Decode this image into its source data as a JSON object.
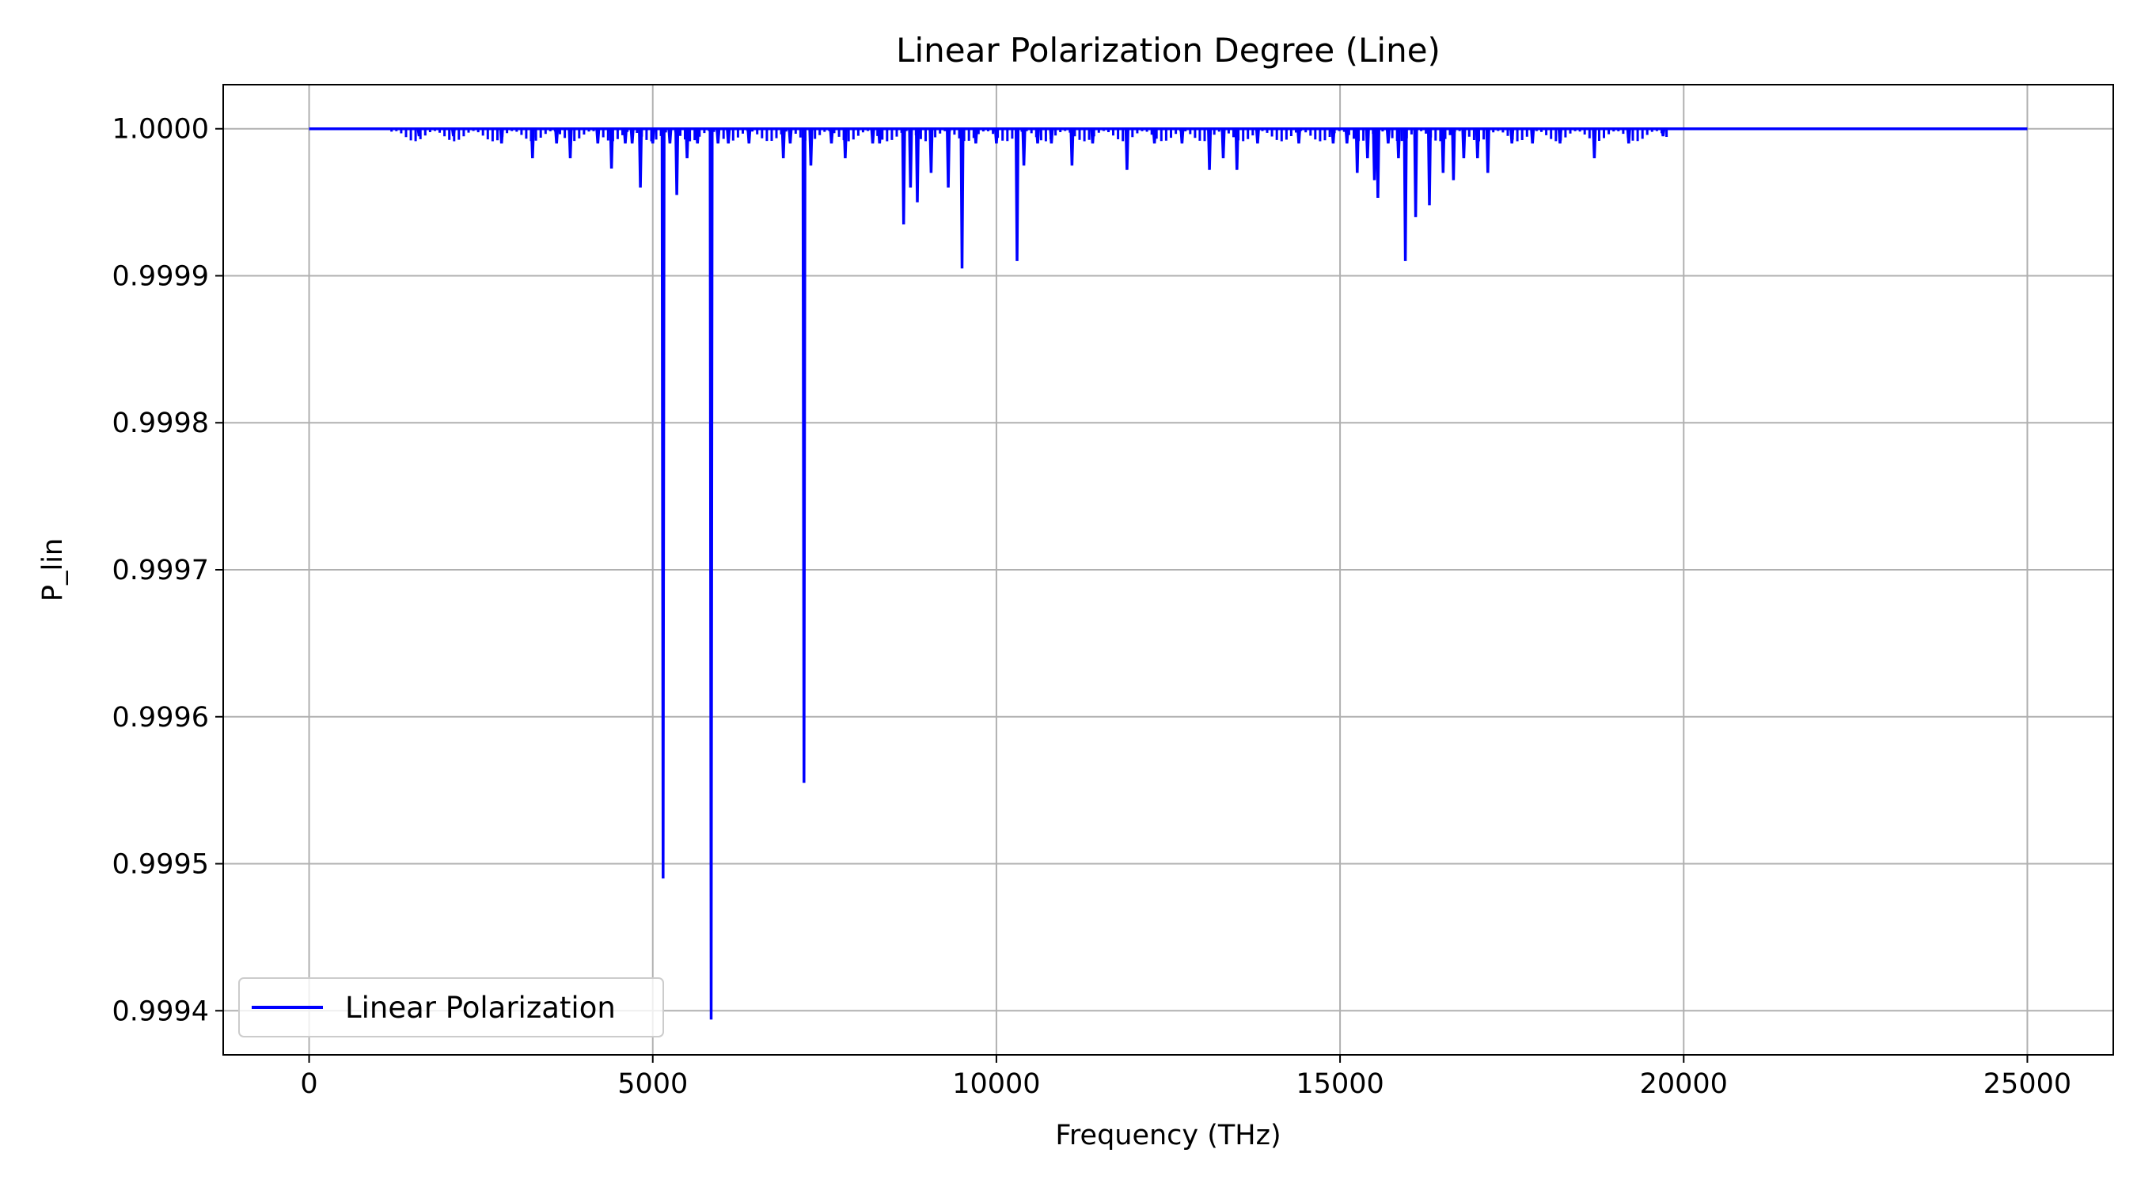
{
  "chart_data": {
    "type": "line",
    "title": "Linear Polarization Degree (Line)",
    "xlabel": "Frequency (THz)",
    "ylabel": "P_lin",
    "xlim": [
      -1250,
      26250
    ],
    "ylim": [
      0.99937,
      1.00003
    ],
    "xticks": [
      0,
      5000,
      10000,
      15000,
      20000,
      25000
    ],
    "xtick_labels": [
      "0",
      "5000",
      "10000",
      "15000",
      "20000",
      "25000"
    ],
    "yticks": [
      0.9994,
      0.9995,
      0.9996,
      0.9997,
      0.9998,
      0.9999,
      1.0
    ],
    "ytick_labels": [
      "0.9994",
      "0.9995",
      "0.9996",
      "0.9997",
      "0.9998",
      "0.9999",
      "1.0000"
    ],
    "grid": true,
    "legend_position": "lower-left",
    "colors": {
      "line": "#0000ff",
      "grid": "#b0b0b0",
      "axes": "#000000"
    },
    "baseline": 1.0,
    "x_range": [
      0,
      25000
    ],
    "series": [
      {
        "name": "Linear Polarization",
        "dips": [
          [
            1600,
            0.999995
          ],
          [
            2100,
            0.999995
          ],
          [
            2800,
            0.99999
          ],
          [
            3250,
            0.99998
          ],
          [
            3600,
            0.99999
          ],
          [
            3800,
            0.99998
          ],
          [
            4200,
            0.99999
          ],
          [
            4400,
            0.999973
          ],
          [
            4600,
            0.99999
          ],
          [
            4700,
            0.99999
          ],
          [
            4820,
            0.99996
          ],
          [
            5000,
            0.99999
          ],
          [
            5150,
            0.99949
          ],
          [
            5250,
            0.99999
          ],
          [
            5350,
            0.999955
          ],
          [
            5500,
            0.99998
          ],
          [
            5650,
            0.99999
          ],
          [
            5850,
            0.999394
          ],
          [
            5950,
            0.99999
          ],
          [
            6100,
            0.99999
          ],
          [
            6400,
            0.99999
          ],
          [
            6900,
            0.99998
          ],
          [
            7000,
            0.99999
          ],
          [
            7200,
            0.999555
          ],
          [
            7300,
            0.999975
          ],
          [
            7600,
            0.99999
          ],
          [
            7800,
            0.99998
          ],
          [
            8200,
            0.99999
          ],
          [
            8300,
            0.99999
          ],
          [
            8650,
            0.999935
          ],
          [
            8750,
            0.99996
          ],
          [
            8850,
            0.99995
          ],
          [
            9050,
            0.99997
          ],
          [
            9300,
            0.99996
          ],
          [
            9500,
            0.999905
          ],
          [
            9700,
            0.99999
          ],
          [
            10000,
            0.99999
          ],
          [
            10300,
            0.99991
          ],
          [
            10400,
            0.999975
          ],
          [
            10600,
            0.99999
          ],
          [
            10800,
            0.99999
          ],
          [
            11100,
            0.999975
          ],
          [
            11400,
            0.99999
          ],
          [
            11900,
            0.999972
          ],
          [
            12300,
            0.99999
          ],
          [
            12700,
            0.99999
          ],
          [
            13100,
            0.999972
          ],
          [
            13300,
            0.99998
          ],
          [
            13500,
            0.999972
          ],
          [
            13800,
            0.99999
          ],
          [
            14400,
            0.99999
          ],
          [
            14900,
            0.99999
          ],
          [
            15100,
            0.99999
          ],
          [
            15250,
            0.99997
          ],
          [
            15400,
            0.99998
          ],
          [
            15500,
            0.999965
          ],
          [
            15550,
            0.999953
          ],
          [
            15700,
            0.99999
          ],
          [
            15850,
            0.99998
          ],
          [
            15950,
            0.99991
          ],
          [
            16100,
            0.99994
          ],
          [
            16300,
            0.999948
          ],
          [
            16500,
            0.99997
          ],
          [
            16650,
            0.999965
          ],
          [
            16800,
            0.99998
          ],
          [
            17000,
            0.99998
          ],
          [
            17150,
            0.99997
          ],
          [
            17500,
            0.99999
          ],
          [
            17800,
            0.99999
          ],
          [
            18200,
            0.99999
          ],
          [
            18700,
            0.99998
          ],
          [
            19200,
            0.99999
          ],
          [
            19700,
            0.999995
          ]
        ]
      }
    ]
  }
}
